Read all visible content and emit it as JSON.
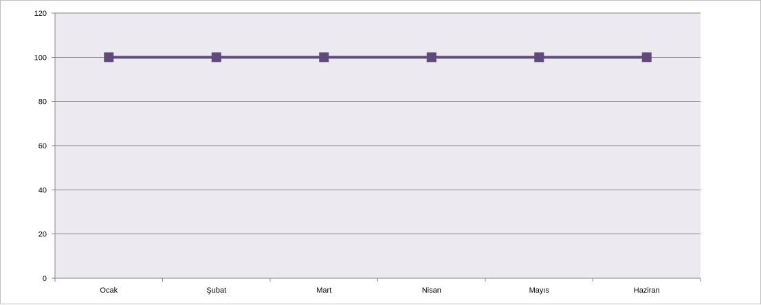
{
  "chart_data": {
    "type": "line",
    "title": "",
    "xlabel": "",
    "ylabel": "",
    "categories": [
      "Ocak",
      "Şubat",
      "Mart",
      "Nisan",
      "Mayıs",
      "Haziran"
    ],
    "series": [
      {
        "values": [
          100,
          100,
          100,
          100,
          100,
          100
        ],
        "color": "#604a7b",
        "marker": "square"
      }
    ],
    "ylim": [
      0,
      120
    ],
    "yticks": [
      0,
      20,
      40,
      60,
      80,
      100,
      120
    ],
    "grid": true,
    "legend": "none",
    "plot_background": "#ece9f0",
    "gridline_color": "#868686"
  }
}
